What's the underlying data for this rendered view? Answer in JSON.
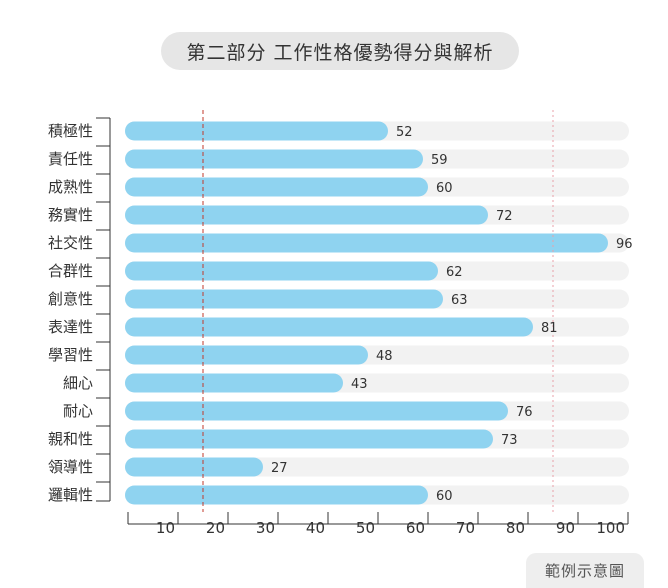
{
  "title": "第二部分  工作性格優勢得分與解析",
  "footnote": "範例示意圖",
  "colors": {
    "bar": "#8fd3f0",
    "track": "#f2f2f2",
    "low_marker": "#c0392b",
    "high_marker": "#e8a0a8",
    "axis": "#333333"
  },
  "chart_data": {
    "type": "bar",
    "orientation": "horizontal",
    "categories": [
      "積極性",
      "責任性",
      "成熟性",
      "務實性",
      "社交性",
      "合群性",
      "創意性",
      "表達性",
      "學習性",
      "細心",
      "耐心",
      "親和性",
      "領導性",
      "邏輯性"
    ],
    "values": [
      52,
      59,
      60,
      72,
      96,
      62,
      63,
      81,
      48,
      43,
      76,
      73,
      27,
      60
    ],
    "xlim": [
      0,
      100
    ],
    "xticks": [
      10,
      20,
      30,
      40,
      50,
      60,
      70,
      80,
      90,
      100
    ],
    "reference_lines": [
      {
        "value": 15,
        "style": "dashed",
        "color": "#c0392b"
      },
      {
        "value": 85,
        "style": "dotted",
        "color": "#e8a0a8"
      }
    ],
    "grid": false,
    "title": "",
    "xlabel": "",
    "ylabel": ""
  }
}
